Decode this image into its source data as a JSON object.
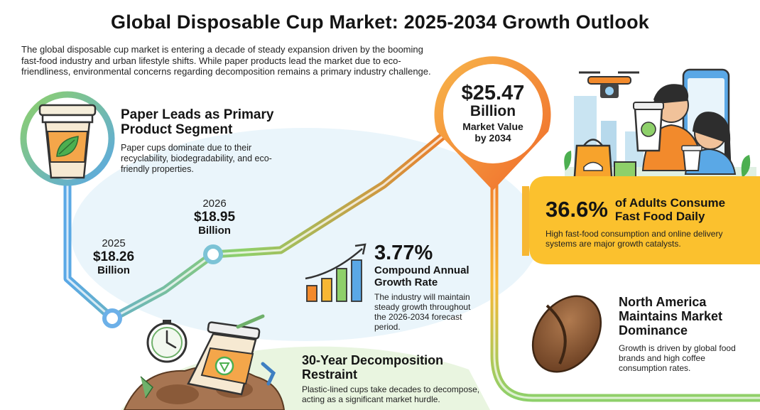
{
  "title": "Global Disposable Cup Market: 2025-2034 Growth Outlook",
  "intro": "The global disposable cup market is entering a decade of steady expansion driven by the booming fast-food industry and urban lifestyle shifts. While paper products lead the market due to eco-friendliness, environmental concerns regarding decomposition remains a primary industry challenge.",
  "paper": {
    "heading_line1": "Paper Leads as Primary",
    "heading_line2": "Product Segment",
    "body": "Paper cups dominate due to their recyclability, biodegradability, and eco-friendly properties."
  },
  "points": {
    "y2025": {
      "year": "2025",
      "value": "$18.26",
      "unit": "Billion"
    },
    "y2026": {
      "year": "2026",
      "value": "$18.95",
      "unit": "Billion"
    },
    "y2034": {
      "value": "$25.47",
      "unit": "Billion",
      "caption_line1": "Market Value",
      "caption_line2": "by 2034"
    }
  },
  "cagr": {
    "value": "3.77%",
    "label_line1": "Compound Annual",
    "label_line2": "Growth Rate",
    "body": "The industry will maintain steady growth throughout the 2026-2034 forecast period."
  },
  "decomposition": {
    "heading_line1": "30-Year Decomposition",
    "heading_line2": "Restraint",
    "body": "Plastic-lined cups take decades to decompose, acting as a significant market hurdle."
  },
  "fastfood": {
    "value": "36.6%",
    "label_line1": "of Adults Consume",
    "label_line2": "Fast Food Daily",
    "body": "High fast-food consumption and online delivery systems are major growth catalysts."
  },
  "northamerica": {
    "heading_line1": "North America",
    "heading_line2": "Maintains Market",
    "heading_line3": "Dominance",
    "body": "Growth is driven by global food brands and high coffee consumption rates."
  },
  "colors": {
    "path_start": "#5aa8e6",
    "path_mid": "#8ed06a",
    "path_end": "#f07a2a",
    "yellow_panel": "#fbc12e",
    "pin_orange": "#f28a2c"
  },
  "icons": [
    "coffee-cup-icon",
    "leaf-icon",
    "bar-chart-icon",
    "clock-icon",
    "coffee-bean-icon",
    "drone-icon",
    "smartphone-icon",
    "food-bag-icon",
    "recycle-icon"
  ]
}
